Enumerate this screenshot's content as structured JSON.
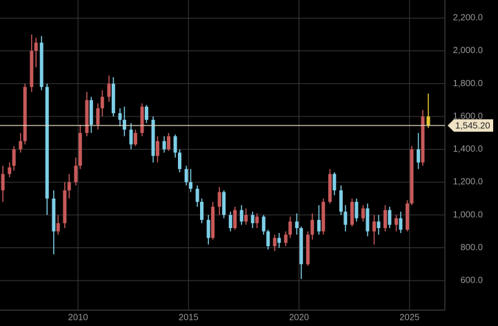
{
  "chart_data": {
    "type": "candlestick",
    "x": [
      2006.6,
      2006.9,
      2007.1,
      2007.4,
      2007.6,
      2007.9,
      2008.1,
      2008.35,
      2008.6,
      2008.9,
      2009.1,
      2009.4,
      2009.6,
      2009.9,
      2010.1,
      2010.4,
      2010.6,
      2010.9,
      2011.1,
      2011.4,
      2011.6,
      2011.9,
      2012.1,
      2012.4,
      2012.6,
      2012.9,
      2013.1,
      2013.4,
      2013.6,
      2013.9,
      2014.1,
      2014.4,
      2014.6,
      2014.9,
      2015.1,
      2015.4,
      2015.6,
      2015.9,
      2016.1,
      2016.4,
      2016.6,
      2016.9,
      2017.1,
      2017.4,
      2017.6,
      2017.9,
      2018.1,
      2018.4,
      2018.6,
      2018.9,
      2019.1,
      2019.4,
      2019.6,
      2019.9,
      2020.1,
      2020.4,
      2020.6,
      2020.9,
      2021.1,
      2021.4,
      2021.6,
      2021.9,
      2022.1,
      2022.4,
      2022.6,
      2022.9,
      2023.1,
      2023.4,
      2023.6,
      2023.9,
      2024.1,
      2024.4,
      2024.6,
      2024.9,
      2025.1,
      2025.4,
      2025.6,
      2025.85
    ],
    "open": [
      1150,
      1250,
      1300,
      1400,
      1450,
      1780,
      2000,
      2050,
      1780,
      1100,
      900,
      950,
      1150,
      1200,
      1300,
      1500,
      1700,
      1550,
      1650,
      1720,
      1800,
      1620,
      1580,
      1520,
      1430,
      1500,
      1660,
      1580,
      1360,
      1450,
      1400,
      1480,
      1380,
      1280,
      1200,
      1160,
      1080,
      970,
      860,
      1050,
      1140,
      1000,
      920,
      1030,
      960,
      1000,
      950,
      990,
      900,
      810,
      860,
      830,
      880,
      960,
      920,
      700,
      880,
      970,
      900,
      1080,
      1250,
      1150,
      1020,
      940,
      1080,
      980,
      1040,
      900,
      960,
      920,
      1030,
      940,
      980,
      910,
      1070,
      1400,
      1320,
      1600
    ],
    "high": [
      1300,
      1320,
      1420,
      1500,
      1800,
      2100,
      2080,
      2090,
      1800,
      1150,
      1000,
      1200,
      1250,
      1350,
      1550,
      1750,
      1720,
      1680,
      1760,
      1850,
      1840,
      1650,
      1660,
      1560,
      1520,
      1680,
      1670,
      1600,
      1480,
      1480,
      1500,
      1490,
      1400,
      1300,
      1280,
      1180,
      1100,
      1000,
      1080,
      1170,
      1150,
      1020,
      1050,
      1060,
      1040,
      1020,
      1010,
      1000,
      910,
      880,
      890,
      900,
      990,
      1010,
      930,
      900,
      1010,
      1060,
      1100,
      1280,
      1260,
      1180,
      1060,
      1100,
      1100,
      1060,
      1070,
      1000,
      1000,
      1060,
      1050,
      1000,
      1020,
      1090,
      1420,
      1500,
      1640,
      1740
    ],
    "low": [
      1080,
      1230,
      1270,
      1380,
      1430,
      1750,
      1900,
      1760,
      1000,
      760,
      880,
      920,
      1100,
      1180,
      1280,
      1480,
      1500,
      1520,
      1600,
      1690,
      1600,
      1540,
      1480,
      1400,
      1420,
      1480,
      1560,
      1320,
      1320,
      1380,
      1390,
      1350,
      1260,
      1180,
      1140,
      1050,
      950,
      820,
      850,
      1000,
      980,
      900,
      910,
      940,
      940,
      920,
      920,
      880,
      790,
      780,
      800,
      810,
      860,
      880,
      610,
      690,
      850,
      880,
      880,
      1070,
      1120,
      1000,
      900,
      930,
      960,
      960,
      870,
      820,
      880,
      900,
      920,
      900,
      890,
      900,
      1060,
      1280,
      1300,
      1530
    ],
    "close": [
      1250,
      1290,
      1400,
      1450,
      1780,
      2000,
      2050,
      1780,
      1100,
      900,
      950,
      1150,
      1200,
      1300,
      1500,
      1700,
      1550,
      1650,
      1720,
      1800,
      1620,
      1580,
      1520,
      1430,
      1500,
      1660,
      1580,
      1360,
      1450,
      1400,
      1480,
      1380,
      1280,
      1200,
      1160,
      1080,
      970,
      860,
      1050,
      1140,
      1000,
      920,
      1030,
      960,
      1000,
      950,
      990,
      900,
      810,
      860,
      830,
      880,
      960,
      920,
      700,
      880,
      970,
      900,
      1080,
      1250,
      1150,
      1020,
      940,
      1080,
      980,
      1040,
      900,
      960,
      920,
      1030,
      940,
      980,
      910,
      1070,
      1400,
      1320,
      1600,
      1545.2
    ],
    "up_color": "#c85a5a",
    "down_color": "#7ecfe8",
    "last_color": "#e8c832",
    "last_price": {
      "value": 1545.2,
      "label": "1,545.20"
    },
    "xlim": [
      2006.47,
      2026.6
    ],
    "xticks": [
      2010,
      2015,
      2020,
      2025
    ],
    "ylim": [
      420,
      2310
    ],
    "yticks": [
      {
        "value": 600,
        "label": "600.0"
      },
      {
        "value": 800,
        "label": "800.0"
      },
      {
        "value": 1000,
        "label": "1,000.0"
      },
      {
        "value": 1200,
        "label": "1,200.0"
      },
      {
        "value": 1400,
        "label": "1,400.0"
      },
      {
        "value": 1600,
        "label": "1,600.0"
      },
      {
        "value": 1800,
        "label": "1,800.0"
      },
      {
        "value": 2000,
        "label": "2,000.0"
      },
      {
        "value": 2200,
        "label": "2,200.0"
      }
    ],
    "grid": true
  }
}
